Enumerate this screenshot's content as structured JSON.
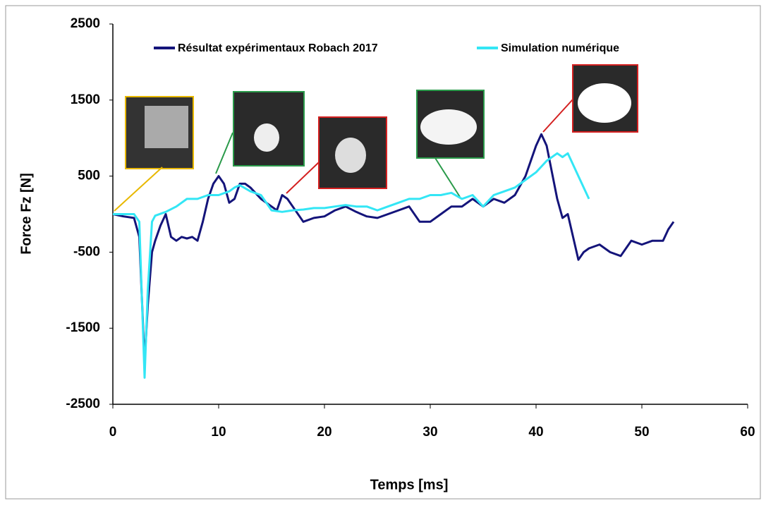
{
  "chart_data": {
    "type": "line",
    "x_label": "Temps [ms]",
    "y_label": "Force Fz [N]",
    "xlim": [
      0,
      60
    ],
    "xticks": [
      0,
      10,
      20,
      30,
      40,
      50,
      60
    ],
    "ylim": [
      -2500,
      2500
    ],
    "yticks": [
      -2500,
      -1500,
      -500,
      500,
      1500,
      2500
    ],
    "grid": false,
    "legend": "top",
    "series": [
      {
        "name": "Résultat expérimentaux Robach 2017",
        "color": "#14147a",
        "x": [
          0,
          1,
          2,
          2.5,
          3,
          3.3,
          3.7,
          4,
          4.5,
          5,
          5.5,
          6,
          6.5,
          7,
          7.5,
          8,
          8.5,
          9,
          9.5,
          10,
          10.5,
          11,
          11.5,
          12,
          12.5,
          13,
          14,
          15,
          15.5,
          16,
          16.5,
          17,
          18,
          19,
          20,
          21,
          22,
          23,
          24,
          25,
          26,
          27,
          28,
          29,
          30,
          31,
          32,
          33,
          34,
          35,
          36,
          37,
          38,
          39,
          40,
          40.5,
          41,
          42,
          42.5,
          43,
          43.5,
          44,
          44.5,
          45,
          46,
          47,
          48,
          49,
          50,
          51,
          52,
          52.5,
          53
        ],
        "values": [
          0,
          -30,
          -50,
          -300,
          -1950,
          -1200,
          -500,
          -350,
          -150,
          0,
          -300,
          -350,
          -300,
          -320,
          -300,
          -350,
          -100,
          200,
          400,
          500,
          400,
          150,
          200,
          400,
          400,
          350,
          200,
          100,
          50,
          250,
          200,
          100,
          -100,
          -50,
          -30,
          50,
          100,
          30,
          -30,
          -50,
          0,
          50,
          100,
          -100,
          -100,
          0,
          100,
          100,
          200,
          100,
          200,
          150,
          250,
          500,
          900,
          1050,
          900,
          200,
          -50,
          0,
          -300,
          -600,
          -500,
          -450,
          -400,
          -500,
          -550,
          -350,
          -400,
          -350,
          -350,
          -200,
          -100
        ]
      },
      {
        "name": "Simulation numérique",
        "color": "#33e6f5",
        "x": [
          0,
          2,
          2.5,
          3,
          3.3,
          3.7,
          4,
          5,
          6,
          7,
          8,
          9,
          10,
          11,
          11.5,
          12,
          13,
          14,
          15,
          16,
          17,
          18,
          19,
          20,
          21,
          22,
          23,
          24,
          25,
          26,
          27,
          28,
          29,
          30,
          31,
          32,
          33,
          34,
          35,
          36,
          37,
          38,
          39,
          40,
          41,
          42,
          42.5,
          43,
          43.5,
          44,
          45
        ],
        "values": [
          0,
          0,
          -100,
          -2150,
          -1000,
          -100,
          -20,
          30,
          100,
          200,
          200,
          250,
          250,
          300,
          350,
          380,
          300,
          250,
          50,
          30,
          50,
          60,
          80,
          80,
          100,
          120,
          100,
          100,
          50,
          100,
          150,
          200,
          200,
          250,
          250,
          280,
          200,
          250,
          100,
          250,
          300,
          350,
          450,
          550,
          700,
          800,
          750,
          800,
          650,
          500,
          200
        ]
      }
    ]
  }
}
